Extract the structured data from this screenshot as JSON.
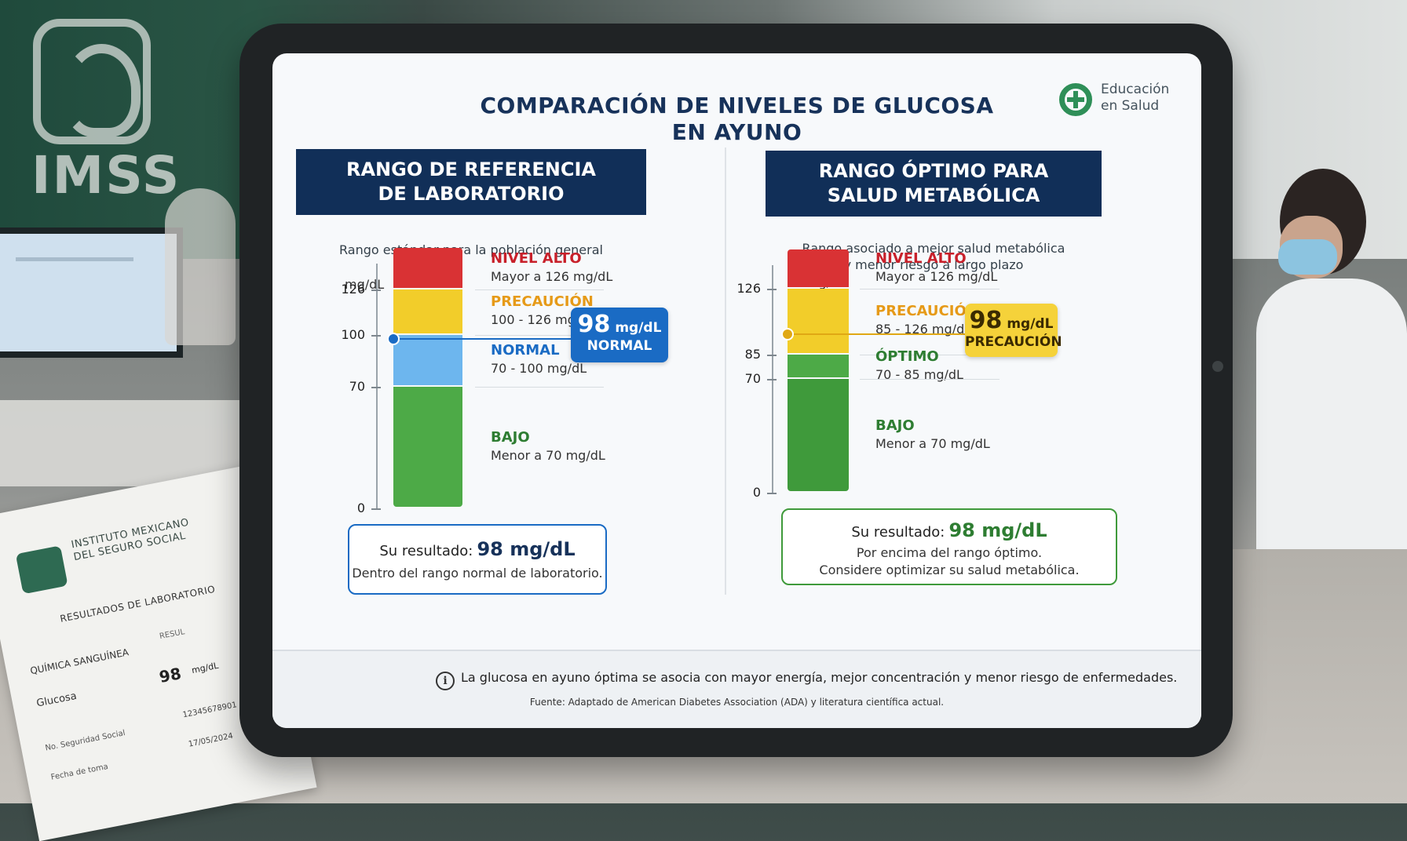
{
  "scene": {
    "wall_sign": "IMSS"
  },
  "paper": {
    "institution": "INSTITUTO MEXICANO\nDEL SEGURO SOCIAL",
    "title": "RESULTADOS DE LABORATORIO",
    "section": "QUÍMICA SANGUÍNEA",
    "result_col": "RESUL",
    "test": "Glucosa",
    "value": "98",
    "unit": "mg/dL",
    "nss_label": "No. Seguridad Social",
    "nss_value": "12345678901",
    "date_label": "Fecha de toma",
    "date_value": "17/05/2024"
  },
  "screen": {
    "title_line1": "COMPARACIÓN DE NIVELES DE GLUCOSA",
    "title_line2": "EN AYUNO",
    "brand_line1": "Educación",
    "brand_line2": "en Salud",
    "footer_note": "La glucosa en ayuno óptima se asocia con mayor energía, mejor concentración y menor riesgo de enfermedades.",
    "footer_source": "Fuente: Adaptado de American Diabetes Association (ADA) y literatura científica actual.",
    "info_glyph": "i"
  },
  "colors": {
    "red": "#d93234",
    "yellow": "#f2cd2a",
    "light_blue": "#6db6ee",
    "green": "#4daa47",
    "dark_green": "#3f9a3b",
    "navy": "#112f58",
    "blue_accent": "#1a6bc4",
    "orange_text": "#e69a18",
    "green_text": "#2e7d32"
  },
  "chart_data": [
    {
      "type": "bar",
      "title": "RANGO DE REFERENCIA\nDE LABORATORIO",
      "subtitle": "Rango estándar para la población general",
      "ylabel": "mg/dL",
      "ylim": [
        0,
        150
      ],
      "ticks": [
        {
          "value": 0,
          "label": "0"
        },
        {
          "value": 70,
          "label": "70"
        },
        {
          "value": 100,
          "label": "100"
        },
        {
          "value": 126,
          "label": "126"
        }
      ],
      "zones": [
        {
          "name": "NIVEL ALTO",
          "range": "Mayor a 126 mg/dL",
          "from": 126,
          "to": 150,
          "color": "#d93234",
          "label_color": "#c8202a"
        },
        {
          "name": "PRECAUCIÓN",
          "range": "100 - 126 mg/dL",
          "from": 100,
          "to": 126,
          "color": "#f2cd2a",
          "label_color": "#e69a18"
        },
        {
          "name": "NORMAL",
          "range": "70 - 100 mg/dL",
          "from": 70,
          "to": 100,
          "color": "#6db6ee",
          "label_color": "#1a6bc4"
        },
        {
          "name": "BAJO",
          "range": "Menor a 70 mg/dL",
          "from": 0,
          "to": 70,
          "color": "#4daa47",
          "label_color": "#2e7d32"
        }
      ],
      "marker": {
        "value": 98,
        "value_label": "98",
        "unit": "mg/dL",
        "status": "NORMAL",
        "color": "#1a6bc4"
      },
      "result": {
        "label": "Su resultado:",
        "value": "98 mg/dL",
        "note": "Dentro del rango normal de laboratorio."
      }
    },
    {
      "type": "bar",
      "title": "RANGO ÓPTIMO PARA\nSALUD METABÓLICA",
      "subtitle": "Rango asociado a mejor salud metabólica\ny menor riesgo a largo plazo",
      "ylabel": "mg/dL",
      "ylim": [
        0,
        150
      ],
      "ticks": [
        {
          "value": 0,
          "label": "0"
        },
        {
          "value": 70,
          "label": "70"
        },
        {
          "value": 85,
          "label": "85"
        },
        {
          "value": 126,
          "label": "126"
        }
      ],
      "zones": [
        {
          "name": "NIVEL ALTO",
          "range": "Mayor a 126 mg/dL",
          "from": 126,
          "to": 150,
          "color": "#d93234",
          "label_color": "#c8202a"
        },
        {
          "name": "PRECAUCIÓN",
          "range": "85 - 126 mg/dL",
          "from": 85,
          "to": 126,
          "color": "#f2cd2a",
          "label_color": "#e69a18"
        },
        {
          "name": "ÓPTIMO",
          "range": "70 - 85 mg/dL",
          "from": 70,
          "to": 85,
          "color": "#4daa47",
          "label_color": "#2e7d32"
        },
        {
          "name": "BAJO",
          "range": "Menor a 70 mg/dL",
          "from": 0,
          "to": 70,
          "color": "#3f9a3b",
          "label_color": "#2e7d32"
        }
      ],
      "marker": {
        "value": 98,
        "value_label": "98",
        "unit": "mg/dL",
        "status": "PRECAUCIÓN",
        "color": "#e0a814"
      },
      "result": {
        "label": "Su resultado:",
        "value": "98 mg/dL",
        "note": "Por encima del rango óptimo.\nConsidere optimizar su salud metabólica."
      }
    }
  ]
}
